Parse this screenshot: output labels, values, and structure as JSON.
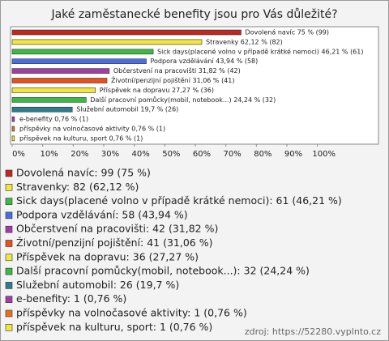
{
  "chart_data": {
    "type": "bar",
    "orientation": "horizontal",
    "title": "Jaké zaměstanecké benefity jsou pro Vás důležité?",
    "values": [
      75,
      62.12,
      46.21,
      43.94,
      31.82,
      31.06,
      27.27,
      24.24,
      19.7,
      0.76,
      0.76,
      0.76
    ],
    "value_labels": [
      "Dovolená navíc 75 % (99)",
      "Stravenky 62,12 % (82)",
      "Sick days(placené volno v případě krátké nemoci) 46,21 % (61)",
      "Podpora vzdělávání 43,94 % (58)",
      "Občerstvení na pracovišti 31,82 % (42)",
      "Životní/penzijní pojištění 31,06 % (41)",
      "Příspěvek na dopravu 27,27 % (36)",
      "Další pracovní pomůcky(mobil, notebook...) 24,24 % (32)",
      "Služební automobil 19,7 % (26)",
      "e-benefity 0,76 % (1)",
      "příspěvky na volnočasové aktivity 0,76 % (1)",
      "příspěvek na kulturu, sport 0,76 % (1)"
    ],
    "legend_labels": [
      "Dovolená navíc: 99 (75 %)",
      "Stravenky: 82 (62,12 %)",
      "Sick days(placené volno v případě krátké nemoci): 61 (46,21 %)",
      "Podpora vzdělávání: 58 (43,94 %)",
      "Občerstvení na pracovišti: 42 (31,82 %)",
      "Životní/penzijní pojištění: 41 (31,06 %)",
      "Příspěvek na dopravu: 36 (27,27 %)",
      "Další pracovní pomůcky(mobil, notebook...): 32 (24,24 %)",
      "Služební automobil: 26 (19,7 %)",
      "e-benefity: 1 (0,76 %)",
      "příspěvky na volnočasové aktivity: 1 (0,76 %)",
      "příspěvek na kulturu, sport: 1 (0,76 %)"
    ],
    "colors": [
      "#c0281e",
      "#f2e63a",
      "#3cb844",
      "#4a6ee0",
      "#a13ea6",
      "#e8501c",
      "#f2e63a",
      "#3cb844",
      "#2e7d8c",
      "#a13ea6",
      "#e8701c",
      "#f2e63a"
    ],
    "xlim": [
      0,
      120
    ],
    "xticks": [
      {
        "value": 0,
        "label": "0%"
      },
      {
        "value": 10,
        "label": "10%"
      },
      {
        "value": 20,
        "label": "20%"
      },
      {
        "value": 30,
        "label": "30%"
      },
      {
        "value": 40,
        "label": "40%"
      },
      {
        "value": 50,
        "label": "50%"
      },
      {
        "value": 60,
        "label": "60%"
      },
      {
        "value": 70,
        "label": "70%"
      },
      {
        "value": 80,
        "label": "80%"
      },
      {
        "value": 90,
        "label": "90%"
      },
      {
        "value": 100,
        "label": "100%"
      }
    ],
    "source": "zdroj: https://52280.vyplnto.cz"
  }
}
